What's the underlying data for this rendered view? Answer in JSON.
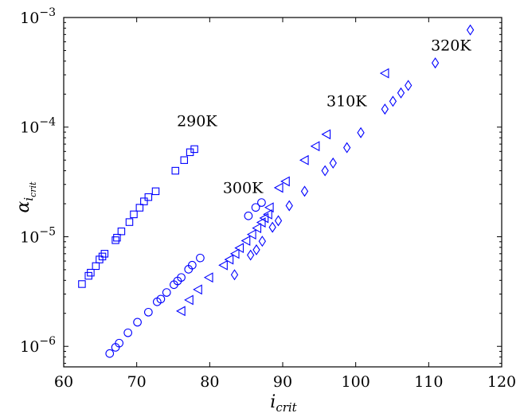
{
  "chart_data": {
    "type": "scatter",
    "title": "",
    "xlabel": "i_crit",
    "ylabel": "α_{i_crit}",
    "x_axis": {
      "min": 60,
      "max": 120,
      "ticks": [
        60,
        70,
        80,
        90,
        100,
        110,
        120
      ],
      "scale": "linear"
    },
    "y_axis": {
      "scale": "log",
      "min": 6.5e-07,
      "max": 0.001,
      "ticks": [
        {
          "value": 1e-06,
          "base": "10",
          "exp": "−6"
        },
        {
          "value": 1e-05,
          "base": "10",
          "exp": "−5"
        },
        {
          "value": 0.0001,
          "base": "10",
          "exp": "−4"
        },
        {
          "value": 0.001,
          "base": "10",
          "exp": "−3"
        }
      ]
    },
    "grid": false,
    "marker_color": "#0000ff",
    "annotations": [
      {
        "text": "290K",
        "x": 75.5,
        "y": 0.000102
      },
      {
        "text": "300K",
        "x": 81.8,
        "y": 2.5e-05
      },
      {
        "text": "310K",
        "x": 96.0,
        "y": 0.000155
      },
      {
        "text": "320K",
        "x": 110.3,
        "y": 0.0005
      }
    ],
    "series": [
      {
        "marker": "square",
        "points": [
          [
            62.5,
            3.7e-06
          ],
          [
            63.4,
            4.4e-06
          ],
          [
            63.7,
            4.7e-06
          ],
          [
            64.4,
            5.4e-06
          ],
          [
            64.9,
            6.2e-06
          ],
          [
            65.3,
            6.6e-06
          ],
          [
            65.6,
            7e-06
          ],
          [
            67.1,
            9.3e-06
          ],
          [
            67.3,
            9.8e-06
          ],
          [
            67.9,
            1.12e-05
          ],
          [
            69.0,
            1.36e-05
          ],
          [
            69.6,
            1.6e-05
          ],
          [
            70.4,
            1.84e-05
          ],
          [
            71.0,
            2.1e-05
          ],
          [
            71.6,
            2.3e-05
          ],
          [
            72.6,
            2.6e-05
          ],
          [
            75.3,
            4e-05
          ],
          [
            76.5,
            5e-05
          ],
          [
            77.3,
            5.9e-05
          ],
          [
            77.9,
            6.3e-05
          ]
        ]
      },
      {
        "marker": "circle",
        "points": [
          [
            66.3,
            8.6e-07
          ],
          [
            67.1,
            9.8e-07
          ],
          [
            67.6,
            1.07e-06
          ],
          [
            68.8,
            1.33e-06
          ],
          [
            70.1,
            1.66e-06
          ],
          [
            71.6,
            2.05e-06
          ],
          [
            72.8,
            2.55e-06
          ],
          [
            73.3,
            2.7e-06
          ],
          [
            74.1,
            3.1e-06
          ],
          [
            75.1,
            3.65e-06
          ],
          [
            75.6,
            3.95e-06
          ],
          [
            76.1,
            4.25e-06
          ],
          [
            77.1,
            5.05e-06
          ],
          [
            77.6,
            5.5e-06
          ],
          [
            78.7,
            6.4e-06
          ],
          [
            85.3,
            1.55e-05
          ],
          [
            86.3,
            1.85e-05
          ],
          [
            87.1,
            2.05e-05
          ]
        ]
      },
      {
        "marker": "triangle",
        "points": [
          [
            76.0,
            2.1e-06
          ],
          [
            77.1,
            2.65e-06
          ],
          [
            78.3,
            3.3e-06
          ],
          [
            79.8,
            4.25e-06
          ],
          [
            81.8,
            5.5e-06
          ],
          [
            82.6,
            6.2e-06
          ],
          [
            83.4,
            7e-06
          ],
          [
            84.0,
            7.9e-06
          ],
          [
            84.9,
            9.2e-06
          ],
          [
            85.7,
            1.05e-05
          ],
          [
            86.4,
            1.2e-05
          ],
          [
            87.0,
            1.35e-05
          ],
          [
            87.4,
            1.48e-05
          ],
          [
            87.9,
            1.6e-05
          ],
          [
            88.1,
            1.85e-05
          ],
          [
            89.4,
            2.8e-05
          ],
          [
            90.3,
            3.2e-05
          ],
          [
            92.9,
            5e-05
          ],
          [
            94.4,
            6.7e-05
          ],
          [
            95.9,
            8.6e-05
          ],
          [
            103.9,
            0.00031
          ]
        ]
      },
      {
        "marker": "diamond",
        "points": [
          [
            83.4,
            4.5e-06
          ],
          [
            85.6,
            6.8e-06
          ],
          [
            86.4,
            7.6e-06
          ],
          [
            87.2,
            9.1e-06
          ],
          [
            88.6,
            1.22e-05
          ],
          [
            89.4,
            1.4e-05
          ],
          [
            90.9,
            1.92e-05
          ],
          [
            93.0,
            2.6e-05
          ],
          [
            95.8,
            4e-05
          ],
          [
            96.9,
            4.7e-05
          ],
          [
            98.8,
            6.5e-05
          ],
          [
            100.7,
            8.9e-05
          ],
          [
            104.0,
            0.000146
          ],
          [
            105.1,
            0.000172
          ],
          [
            106.2,
            0.000205
          ],
          [
            107.2,
            0.00024
          ],
          [
            110.9,
            0.000385
          ],
          [
            115.7,
            0.00077
          ]
        ]
      }
    ]
  }
}
